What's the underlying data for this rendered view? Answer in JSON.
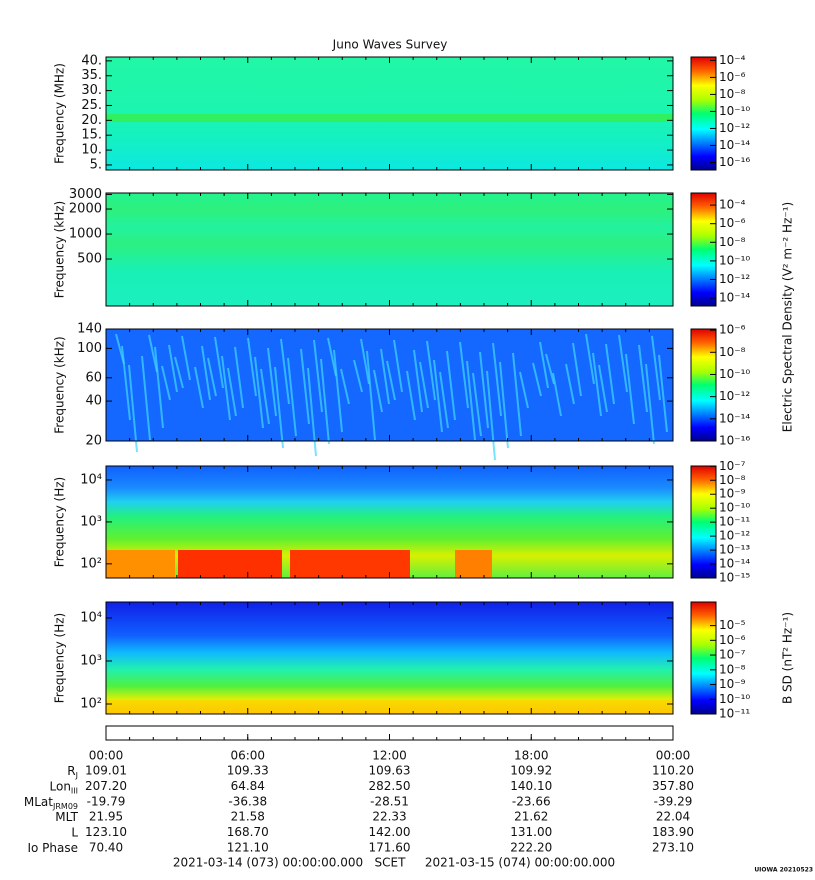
{
  "chart_data": [
    {
      "type": "spectrogram",
      "ylabel": "Frequency (MHz)",
      "yscale": "linear",
      "ylim": [
        3.3,
        41.3
      ],
      "yticks": [
        {
          "value": 5,
          "label": "5."
        },
        {
          "value": 10,
          "label": "10."
        },
        {
          "value": 15,
          "label": "15."
        },
        {
          "value": 20,
          "label": "20."
        },
        {
          "value": 25,
          "label": "25."
        },
        {
          "value": 30,
          "label": "30."
        },
        {
          "value": 35,
          "label": "35."
        },
        {
          "value": 40,
          "label": "40."
        }
      ],
      "clim": [
        1.3e-17,
        0.00025
      ],
      "cticks": [
        {
          "value": 0.0001,
          "label": "10⁻⁴"
        },
        {
          "value": 1e-06,
          "label": "10⁻⁶"
        },
        {
          "value": 1e-08,
          "label": "10⁻⁸"
        },
        {
          "value": 1e-10,
          "label": "10⁻¹⁰"
        },
        {
          "value": 1e-12,
          "label": "10⁻¹²"
        },
        {
          "value": 1e-14,
          "label": "10⁻¹⁴"
        },
        {
          "value": 1e-16,
          "label": "10⁻¹⁶"
        }
      ]
    },
    {
      "type": "spectrogram",
      "ylabel": "Frequency (kHz)",
      "yscale": "log",
      "ylim": [
        136,
        3120
      ],
      "yticks": [
        500,
        1000,
        2000,
        3000
      ],
      "clim": [
        1.4e-15,
        0.002
      ],
      "cticks": [
        {
          "value": 0.0001,
          "label": "10⁻⁴"
        },
        {
          "value": 1e-06,
          "label": "10⁻⁶"
        },
        {
          "value": 1e-08,
          "label": "10⁻⁸"
        },
        {
          "value": 1e-10,
          "label": "10⁻¹⁰"
        },
        {
          "value": 1e-12,
          "label": "10⁻¹²"
        },
        {
          "value": 1e-14,
          "label": "10⁻¹⁴"
        }
      ]
    },
    {
      "type": "spectrogram",
      "ylabel": "Frequency (kHz)",
      "yscale": "log",
      "ylim": [
        20,
        140
      ],
      "yticks": [
        20,
        40,
        60,
        100,
        140
      ],
      "clim": [
        1e-16,
        1.26e-06
      ],
      "cticks": [
        {
          "value": 1e-06,
          "label": "10⁻⁶"
        },
        {
          "value": 1e-08,
          "label": "10⁻⁸"
        },
        {
          "value": 1e-10,
          "label": "10⁻¹⁰"
        },
        {
          "value": 1e-12,
          "label": "10⁻¹²"
        },
        {
          "value": 1e-14,
          "label": "10⁻¹⁴"
        },
        {
          "value": 1e-16,
          "label": "10⁻¹⁶"
        }
      ]
    },
    {
      "type": "spectrogram",
      "ylabel": "Frequency (Hz)",
      "yscale": "log",
      "ylim": [
        46,
        21500
      ],
      "yticks": [
        {
          "value": 100,
          "label": "10²"
        },
        {
          "value": 1000,
          "label": "10³"
        },
        {
          "value": 10000,
          "label": "10⁴"
        }
      ],
      "clim": [
        1e-15,
        1.05e-07
      ],
      "cticks": [
        {
          "value": 1e-07,
          "label": "10⁻⁷"
        },
        {
          "value": 1e-08,
          "label": "10⁻⁸"
        },
        {
          "value": 1e-09,
          "label": "10⁻⁹"
        },
        {
          "value": 1e-10,
          "label": "10⁻¹⁰"
        },
        {
          "value": 1e-11,
          "label": "10⁻¹¹"
        },
        {
          "value": 1e-12,
          "label": "10⁻¹²"
        },
        {
          "value": 1e-13,
          "label": "10⁻¹³"
        },
        {
          "value": 1e-14,
          "label": "10⁻¹⁴"
        },
        {
          "value": 1e-15,
          "label": "10⁻¹⁵"
        }
      ]
    },
    {
      "type": "spectrogram",
      "ylabel": "Frequency (Hz)",
      "yscale": "log",
      "ylim": [
        58.5,
        23500
      ],
      "yticks": [
        {
          "value": 100,
          "label": "10²"
        },
        {
          "value": 1000,
          "label": "10³"
        },
        {
          "value": 10000,
          "label": "10⁴"
        }
      ],
      "clim": [
        1e-11,
        0.0004
      ],
      "cticks": [
        {
          "value": 1e-05,
          "label": "10⁻⁵"
        },
        {
          "value": 1e-06,
          "label": "10⁻⁶"
        },
        {
          "value": 1e-07,
          "label": "10⁻⁷"
        },
        {
          "value": 1e-08,
          "label": "10⁻⁸"
        },
        {
          "value": 1e-09,
          "label": "10⁻⁹"
        },
        {
          "value": 1e-10,
          "label": "10⁻¹⁰"
        },
        {
          "value": 1e-11,
          "label": "10⁻¹¹"
        }
      ],
      "clabel": "B SD (nT² Hz⁻¹)"
    }
  ],
  "title": "Juno Waves Survey",
  "electric_clabel": "Electric Spectral Density (V² m⁻² Hz⁻¹)",
  "time_axis": {
    "xlim": [
      0,
      24
    ],
    "xticks": [
      {
        "value": 0,
        "label": "00:00"
      },
      {
        "value": 6,
        "label": "06:00"
      },
      {
        "value": 12,
        "label": "12:00"
      },
      {
        "value": 18,
        "label": "18:00"
      },
      {
        "value": 24,
        "label": "00:00"
      }
    ]
  },
  "ephemeris": [
    {
      "label": "R",
      "sub": "J",
      "values": [
        "109.01",
        "109.33",
        "109.63",
        "109.92",
        "110.20"
      ]
    },
    {
      "label": "Lon",
      "sub": "III",
      "values": [
        "207.20",
        "64.84",
        "282.50",
        "140.10",
        "357.80"
      ]
    },
    {
      "label": "MLat",
      "sub": "JRM09",
      "values": [
        "-19.79",
        "-36.38",
        "-28.51",
        "-23.66",
        "-39.29"
      ]
    },
    {
      "label": "MLT",
      "values": [
        "21.95",
        "21.58",
        "22.33",
        "21.62",
        "22.04"
      ]
    },
    {
      "label": "L",
      "values": [
        "123.10",
        "168.70",
        "142.00",
        "131.00",
        "183.90"
      ]
    },
    {
      "label": "Io Phase",
      "values": [
        "70.40",
        "121.10",
        "171.60",
        "222.20",
        "273.10"
      ]
    }
  ],
  "footer": {
    "start": "2021-03-14 (073) 00:00:00.000",
    "scale": "SCET",
    "end": "2021-03-15 (074) 00:00:00.000"
  },
  "stamp": "UIOWA 20210523"
}
